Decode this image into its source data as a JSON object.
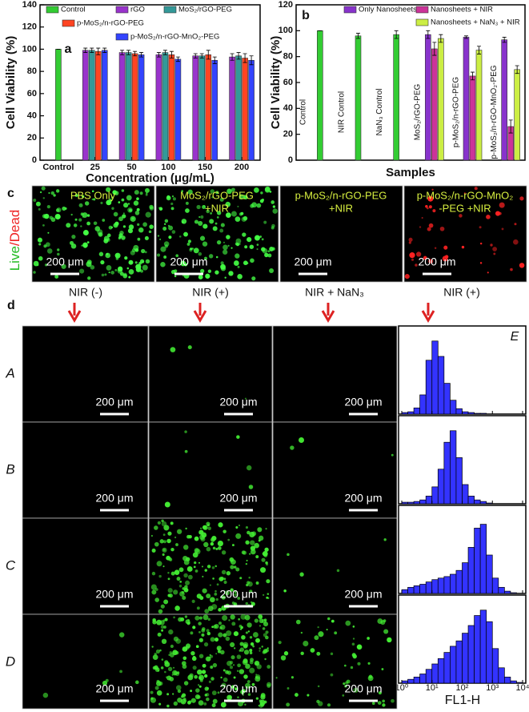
{
  "chart_data": [
    {
      "type": "grouped_bar",
      "label": "a",
      "y_label": "Cell Viability (%)",
      "x_label": "Concentration (μg/mL)",
      "categories": [
        "Control",
        "25",
        "50",
        "100",
        "150",
        "200"
      ],
      "ylim": [
        0,
        140
      ],
      "yticks": [
        0,
        20,
        40,
        60,
        80,
        100,
        120,
        140
      ],
      "series": [
        {
          "name": "Control",
          "color": "#33cc33",
          "values": [
            100,
            null,
            null,
            null,
            null,
            null
          ],
          "errors": [
            0,
            null,
            null,
            null,
            null,
            null
          ]
        },
        {
          "name": "rGO",
          "color": "#9933cc",
          "values": [
            null,
            99,
            97,
            95,
            94,
            93
          ],
          "errors": [
            null,
            2,
            2,
            2,
            2,
            3
          ]
        },
        {
          "name": "MoS₂/rGO-PEG",
          "color": "#339999",
          "values": [
            null,
            99,
            97,
            97,
            94,
            94
          ],
          "errors": [
            null,
            2,
            2,
            2,
            2,
            3
          ]
        },
        {
          "name": "p-MoS₂/n-rGO-PEG",
          "color": "#ff4422",
          "values": [
            null,
            98,
            96,
            95,
            95,
            92
          ],
          "errors": [
            null,
            3,
            2,
            3,
            4,
            4
          ]
        },
        {
          "name": "p-MoS₂/n-rGO-MnO₂-PEG",
          "color": "#3344ff",
          "values": [
            null,
            99,
            95,
            91,
            90,
            90
          ],
          "errors": [
            null,
            2,
            2,
            2,
            3,
            4
          ]
        }
      ]
    },
    {
      "type": "grouped_bar",
      "label": "b",
      "y_label": "Cell Viability (%)",
      "x_label": "Samples",
      "categories": [
        "Control",
        "NIR Control",
        "NaN₃ Control",
        "MoS₂/rGO-PEG",
        "p-MoS₂/n-rGO-PEG",
        "p-MoS₂/n-rGO-MnO₂-PEG"
      ],
      "ylim": [
        0,
        120
      ],
      "yticks": [
        0,
        20,
        40,
        60,
        80,
        100,
        120
      ],
      "controls": {
        "color": "#33cc33",
        "values": [
          100,
          96,
          97,
          null,
          null,
          null
        ],
        "errors": [
          0,
          2,
          3,
          null,
          null,
          null
        ]
      },
      "series": [
        {
          "name": "Only Nanosheets",
          "color": "#8833cc",
          "values": [
            null,
            null,
            null,
            97,
            95,
            93
          ],
          "errors": [
            null,
            null,
            null,
            3,
            1,
            2
          ]
        },
        {
          "name": "Nanosheets + NIR",
          "color": "#cc3399",
          "values": [
            null,
            null,
            null,
            86,
            65,
            26
          ],
          "errors": [
            null,
            null,
            null,
            5,
            3,
            5
          ]
        },
        {
          "name": "Nanosheets + NaN₃ + NIR",
          "color": "#ccee44",
          "values": [
            null,
            null,
            null,
            94,
            85,
            70
          ],
          "errors": [
            null,
            null,
            null,
            3,
            3,
            3
          ]
        }
      ]
    },
    {
      "type": "histogram",
      "label": "E",
      "x_label": "FL1-H",
      "log_x": true,
      "color": "#3333ff",
      "xlim": [
        1,
        10000
      ],
      "xticks": [
        {
          "value": 1,
          "label": "10⁰"
        },
        {
          "value": 10,
          "label": "10¹"
        },
        {
          "value": 100,
          "label": "10²"
        },
        {
          "value": 1000,
          "label": "10³"
        },
        {
          "value": 10000,
          "label": "10⁴"
        }
      ],
      "ylim": [
        0,
        100
      ],
      "bins": [
        1,
        1.585,
        2.512,
        3.981,
        6.31,
        10,
        15.85,
        25.12,
        39.81,
        63.1,
        100,
        158.5,
        251.2,
        398.1,
        631,
        1000,
        1585,
        2512,
        3981,
        6310,
        10000
      ],
      "panels": [
        {
          "counts": [
            2,
            3,
            8,
            25,
            70,
            95,
            75,
            40,
            18,
            7,
            3,
            2,
            1,
            1,
            0,
            0,
            0,
            0,
            0,
            0
          ]
        },
        {
          "counts": [
            2,
            2,
            3,
            5,
            10,
            22,
            45,
            80,
            95,
            60,
            25,
            10,
            5,
            3,
            1,
            0,
            0,
            0,
            0,
            0
          ]
        },
        {
          "counts": [
            5,
            8,
            10,
            12,
            15,
            18,
            20,
            22,
            25,
            30,
            40,
            60,
            85,
            90,
            50,
            20,
            8,
            3,
            1,
            0
          ]
        },
        {
          "counts": [
            3,
            5,
            8,
            12,
            18,
            25,
            32,
            40,
            48,
            55,
            65,
            75,
            88,
            95,
            80,
            45,
            20,
            8,
            3,
            1
          ]
        }
      ]
    }
  ],
  "panel_c": {
    "label": "c",
    "live": "Live",
    "dead": "/Dead",
    "scale_bar": "200 μm",
    "images": [
      {
        "lines": [
          "PBS Only"
        ]
      },
      {
        "lines": [
          "MoS₂/rGO-PEG",
          "+NIR"
        ]
      },
      {
        "lines": [
          "p-MoS₂/n-rGO-PEG",
          "+NIR"
        ]
      },
      {
        "lines": [
          "p-MoS₂/n-rGO-MnO₂",
          "-PEG +NIR"
        ]
      }
    ]
  },
  "panel_d": {
    "label": "d",
    "scale_bar": "200 μm",
    "columns": [
      "NIR (-)",
      "NIR (+)",
      "NIR + NaN₃",
      "NIR (+)"
    ],
    "rows": [
      "A",
      "B",
      "C",
      "D"
    ]
  }
}
